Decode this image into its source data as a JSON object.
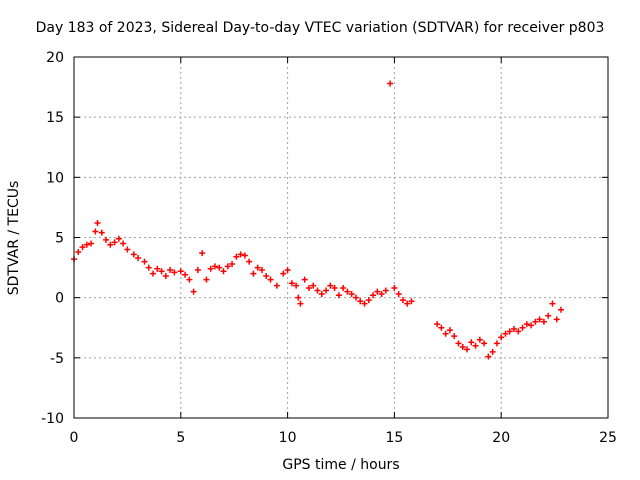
{
  "chart_data": {
    "type": "scatter",
    "title": "Day 183 of 2023, Sidereal Day-to-day VTEC variation (SDTVAR) for receiver p803",
    "xlabel": "GPS time / hours",
    "ylabel": "SDTVAR / TECUs",
    "xlim": [
      0,
      25
    ],
    "ylim": [
      -10,
      20
    ],
    "xticks": [
      "0",
      "5",
      "10",
      "15",
      "20",
      "25"
    ],
    "yticks": [
      "-10",
      "-5",
      "0",
      "5",
      "10",
      "15",
      "20"
    ],
    "grid": true,
    "marker": "+",
    "color": "#ff0000",
    "series": [
      {
        "name": "SDTVAR",
        "points": [
          [
            0.0,
            3.2
          ],
          [
            0.2,
            3.8
          ],
          [
            0.4,
            4.2
          ],
          [
            0.6,
            4.4
          ],
          [
            0.8,
            4.5
          ],
          [
            1.0,
            5.5
          ],
          [
            1.1,
            6.2
          ],
          [
            1.3,
            5.4
          ],
          [
            1.5,
            4.8
          ],
          [
            1.7,
            4.4
          ],
          [
            1.9,
            4.6
          ],
          [
            2.1,
            4.9
          ],
          [
            2.3,
            4.5
          ],
          [
            2.5,
            4.0
          ],
          [
            2.8,
            3.6
          ],
          [
            3.0,
            3.3
          ],
          [
            3.3,
            3.0
          ],
          [
            3.5,
            2.5
          ],
          [
            3.7,
            2.0
          ],
          [
            3.9,
            2.4
          ],
          [
            4.1,
            2.2
          ],
          [
            4.3,
            1.8
          ],
          [
            4.5,
            2.3
          ],
          [
            4.7,
            2.1
          ],
          [
            5.0,
            2.2
          ],
          [
            5.2,
            1.9
          ],
          [
            5.4,
            1.5
          ],
          [
            5.6,
            0.5
          ],
          [
            5.8,
            2.3
          ],
          [
            6.0,
            3.7
          ],
          [
            6.2,
            1.5
          ],
          [
            6.4,
            2.4
          ],
          [
            6.6,
            2.6
          ],
          [
            6.8,
            2.5
          ],
          [
            7.0,
            2.2
          ],
          [
            7.2,
            2.6
          ],
          [
            7.4,
            2.8
          ],
          [
            7.6,
            3.4
          ],
          [
            7.8,
            3.6
          ],
          [
            8.0,
            3.5
          ],
          [
            8.2,
            3.0
          ],
          [
            8.4,
            2.0
          ],
          [
            8.6,
            2.5
          ],
          [
            8.8,
            2.3
          ],
          [
            9.0,
            1.8
          ],
          [
            9.2,
            1.5
          ],
          [
            9.5,
            1.0
          ],
          [
            9.8,
            2.0
          ],
          [
            10.0,
            2.3
          ],
          [
            10.2,
            1.2
          ],
          [
            10.4,
            1.0
          ],
          [
            10.5,
            0.0
          ],
          [
            10.6,
            -0.5
          ],
          [
            10.8,
            1.5
          ],
          [
            11.0,
            0.8
          ],
          [
            11.2,
            1.0
          ],
          [
            11.4,
            0.6
          ],
          [
            11.6,
            0.3
          ],
          [
            11.8,
            0.6
          ],
          [
            12.0,
            1.0
          ],
          [
            12.2,
            0.8
          ],
          [
            12.4,
            0.2
          ],
          [
            12.6,
            0.8
          ],
          [
            12.8,
            0.5
          ],
          [
            13.0,
            0.3
          ],
          [
            13.2,
            0.0
          ],
          [
            13.4,
            -0.3
          ],
          [
            13.6,
            -0.5
          ],
          [
            13.8,
            -0.2
          ],
          [
            14.0,
            0.2
          ],
          [
            14.2,
            0.5
          ],
          [
            14.4,
            0.3
          ],
          [
            14.6,
            0.6
          ],
          [
            14.8,
            17.8
          ],
          [
            15.0,
            0.8
          ],
          [
            15.2,
            0.3
          ],
          [
            15.4,
            -0.2
          ],
          [
            15.6,
            -0.5
          ],
          [
            15.8,
            -0.3
          ],
          [
            17.0,
            -2.2
          ],
          [
            17.2,
            -2.5
          ],
          [
            17.4,
            -3.0
          ],
          [
            17.6,
            -2.7
          ],
          [
            17.8,
            -3.2
          ],
          [
            18.0,
            -3.8
          ],
          [
            18.2,
            -4.1
          ],
          [
            18.4,
            -4.3
          ],
          [
            18.6,
            -3.7
          ],
          [
            18.8,
            -4.0
          ],
          [
            19.0,
            -3.5
          ],
          [
            19.2,
            -3.8
          ],
          [
            19.4,
            -4.9
          ],
          [
            19.6,
            -4.5
          ],
          [
            19.8,
            -3.8
          ],
          [
            20.0,
            -3.3
          ],
          [
            20.2,
            -3.0
          ],
          [
            20.4,
            -2.8
          ],
          [
            20.6,
            -2.6
          ],
          [
            20.8,
            -2.8
          ],
          [
            21.0,
            -2.5
          ],
          [
            21.2,
            -2.2
          ],
          [
            21.4,
            -2.3
          ],
          [
            21.6,
            -2.0
          ],
          [
            21.8,
            -1.8
          ],
          [
            22.0,
            -2.0
          ],
          [
            22.2,
            -1.5
          ],
          [
            22.4,
            -0.5
          ],
          [
            22.6,
            -1.8
          ],
          [
            22.8,
            -1.0
          ]
        ]
      }
    ]
  }
}
